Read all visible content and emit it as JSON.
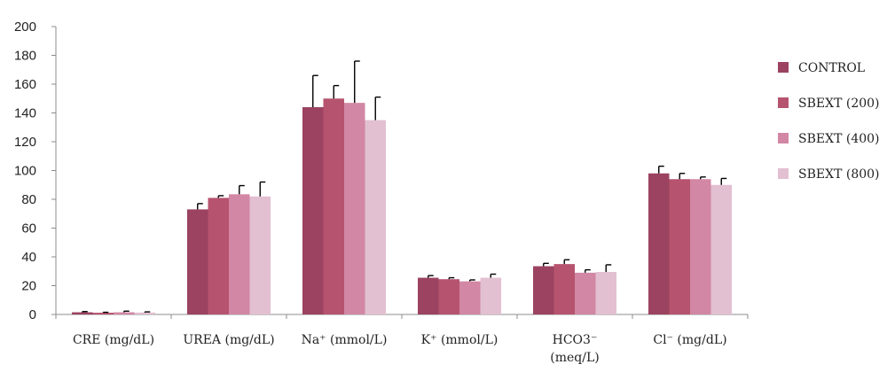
{
  "chart_data": {
    "type": "bar",
    "title": "",
    "xlabel": "",
    "ylabel": "",
    "ylim": [
      0,
      200
    ],
    "yticks": [
      0,
      20,
      40,
      60,
      80,
      100,
      120,
      140,
      160,
      180,
      200
    ],
    "grid": false,
    "legend_position": "right",
    "error_bars": true,
    "categories": [
      [
        "CRE (mg/dL)"
      ],
      [
        "UREA (mg/dL)"
      ],
      [
        "Na⁺ (mmol/L)"
      ],
      [
        "K⁺ (mmol/L)"
      ],
      [
        "HCO3⁻",
        "(meq/L)"
      ],
      [
        "Cl⁻ (mg/dL)"
      ]
    ],
    "series": [
      {
        "name": "CONTROL",
        "color": "#9b4360",
        "values": [
          1.5,
          73,
          144,
          25.5,
          33.5,
          98
        ],
        "errors": [
          0.5,
          4,
          22,
          1.5,
          2,
          5
        ]
      },
      {
        "name": "SBEXT (200)",
        "color": "#b6536f",
        "values": [
          1.2,
          81,
          150,
          24.5,
          35,
          94
        ],
        "errors": [
          0.3,
          1.5,
          9,
          1,
          3,
          4
        ]
      },
      {
        "name": "SBEXT (400)",
        "color": "#d287a4",
        "values": [
          1.5,
          83.5,
          147,
          23,
          29,
          94
        ],
        "errors": [
          0.8,
          6,
          29,
          1,
          2,
          1.5
        ]
      },
      {
        "name": "SBEXT (800)",
        "color": "#e2bfd1",
        "values": [
          1.3,
          82,
          135,
          25.5,
          29.5,
          90
        ],
        "errors": [
          0.5,
          10,
          16,
          2.5,
          5,
          4.5
        ]
      }
    ]
  }
}
